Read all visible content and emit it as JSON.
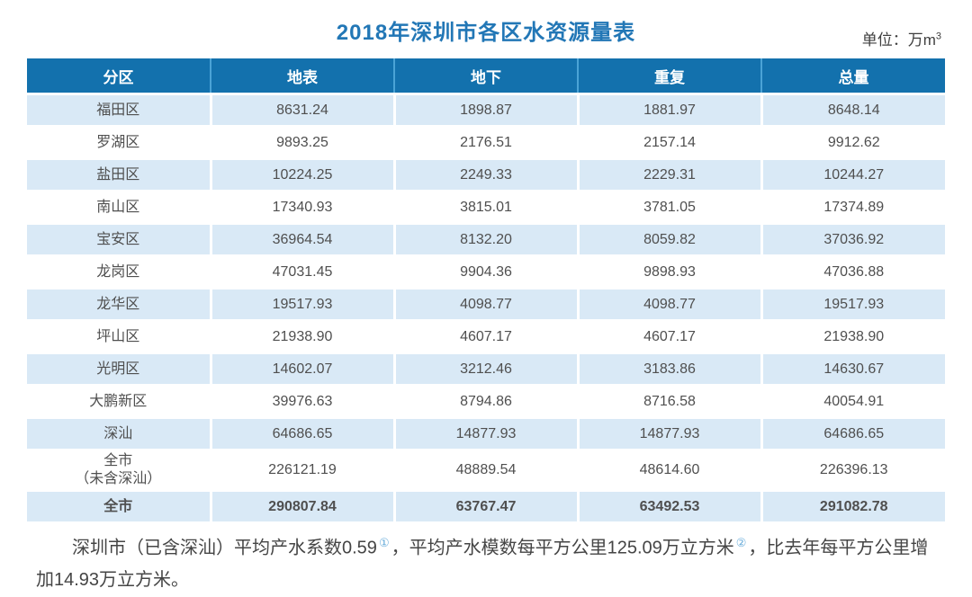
{
  "chart_data": {
    "type": "table",
    "title": "2018年深圳市各区水资源量表",
    "unit_prefix": "单位：万m",
    "unit_sup": "3",
    "columns": [
      "分区",
      "地表",
      "地下",
      "重复",
      "总量"
    ],
    "rows": [
      [
        "福田区",
        "8631.24",
        "1898.87",
        "1881.97",
        "8648.14"
      ],
      [
        "罗湖区",
        "9893.25",
        "2176.51",
        "2157.14",
        "9912.62"
      ],
      [
        "盐田区",
        "10224.25",
        "2249.33",
        "2229.31",
        "10244.27"
      ],
      [
        "南山区",
        "17340.93",
        "3815.01",
        "3781.05",
        "17374.89"
      ],
      [
        "宝安区",
        "36964.54",
        "8132.20",
        "8059.82",
        "37036.92"
      ],
      [
        "龙岗区",
        "47031.45",
        "9904.36",
        "9898.93",
        "47036.88"
      ],
      [
        "龙华区",
        "19517.93",
        "4098.77",
        "4098.77",
        "19517.93"
      ],
      [
        "坪山区",
        "21938.90",
        "4607.17",
        "4607.17",
        "21938.90"
      ],
      [
        "光明区",
        "14602.07",
        "3212.46",
        "3183.86",
        "14630.67"
      ],
      [
        "大鹏新区",
        "39976.63",
        "8794.86",
        "8716.58",
        "40054.91"
      ],
      [
        "深汕",
        "64686.65",
        "14877.93",
        "14877.93",
        "64686.65"
      ],
      [
        "全市\n（未含深汕）",
        "226121.19",
        "48889.54",
        "48614.60",
        "226396.13"
      ],
      [
        "全市",
        "290807.84",
        "63767.47",
        "63492.53",
        "291082.78"
      ]
    ]
  },
  "footnote": {
    "seg1": "深圳市（已含深汕）平均产水系数0.59",
    "sup1": "①",
    "seg2": "，平均产水模数每平方公里125.09万立方米",
    "sup2": "②",
    "seg3": "，比去年每平方公里增加14.93万立方米。"
  },
  "colors": {
    "header_bg": "#1371ad",
    "header_divider": "#4ba3d6",
    "row_alt_bg": "#d9e9f6",
    "title_color": "#2277b6",
    "body_text": "#4f4f4f",
    "footnote_ref": "#66abda"
  }
}
